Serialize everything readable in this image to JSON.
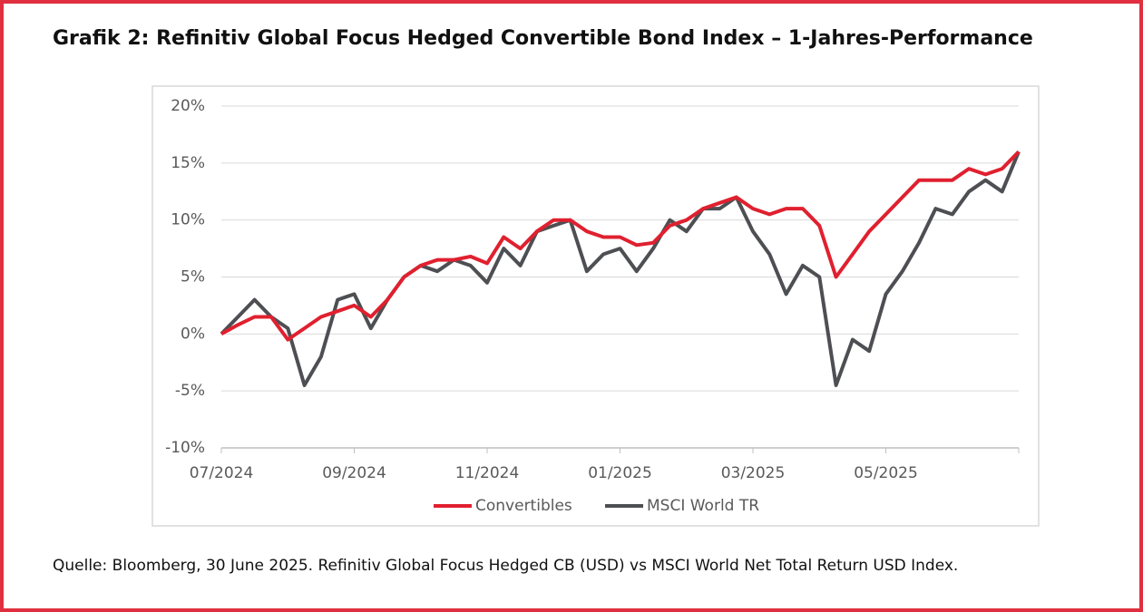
{
  "title": "Grafik 2: Refinitiv Global Focus Hedged Convertible Bond Index – 1-Jahres-Performance",
  "source": "Quelle: Bloomberg, 30 June 2025. Refinitiv Global Focus Hedged CB (USD) vs MSCI World Net Total Return USD Index.",
  "chart_data": {
    "type": "line",
    "categories": [
      "07/2024",
      null,
      null,
      null,
      null,
      null,
      null,
      null,
      "09/2024",
      null,
      null,
      null,
      null,
      null,
      null,
      null,
      "11/2024",
      null,
      null,
      null,
      null,
      null,
      null,
      null,
      "01/2025",
      null,
      null,
      null,
      null,
      null,
      null,
      null,
      "03/2025",
      null,
      null,
      null,
      null,
      null,
      null,
      null,
      "05/2025",
      null,
      null,
      null,
      null,
      null,
      null,
      null,
      null
    ],
    "series": [
      {
        "name": "Convertibles",
        "color": "#e0202f",
        "values": [
          0,
          0.8,
          1.5,
          1.5,
          -0.5,
          0.5,
          1.5,
          2.0,
          2.5,
          1.5,
          3.0,
          5.0,
          6.0,
          6.5,
          6.5,
          6.8,
          6.2,
          8.5,
          7.5,
          9.0,
          10.0,
          10.0,
          9.0,
          8.5,
          8.5,
          7.8,
          8.0,
          9.5,
          10.0,
          11.0,
          11.5,
          12.0,
          11.0,
          10.5,
          11.0,
          11.0,
          9.5,
          5.0,
          7.0,
          9.0,
          10.5,
          12.0,
          13.5,
          13.5,
          13.5,
          14.5,
          14.0,
          14.5,
          16.0
        ]
      },
      {
        "name": "MSCI World TR",
        "color": "#4d4f53",
        "values": [
          0,
          1.5,
          3.0,
          1.5,
          0.5,
          -4.5,
          -2.0,
          3.0,
          3.5,
          0.5,
          3.0,
          5.0,
          6.0,
          5.5,
          6.5,
          6.0,
          4.5,
          7.5,
          6.0,
          9.0,
          9.5,
          10.0,
          5.5,
          7.0,
          7.5,
          5.5,
          7.5,
          10.0,
          9.0,
          11.0,
          11.0,
          12.0,
          9.0,
          7.0,
          3.5,
          6.0,
          5.0,
          -4.5,
          -0.5,
          -1.5,
          3.5,
          5.5,
          8.0,
          11.0,
          10.5,
          12.5,
          13.5,
          12.5,
          16.0
        ]
      }
    ],
    "ylim": [
      -10,
      20
    ],
    "yticks": [
      {
        "value": -10,
        "label": "-10%"
      },
      {
        "value": -5,
        "label": "-5%"
      },
      {
        "value": 0,
        "label": "0%"
      },
      {
        "value": 5,
        "label": "5%"
      },
      {
        "value": 10,
        "label": "10%"
      },
      {
        "value": 15,
        "label": "15%"
      },
      {
        "value": 20,
        "label": "20%"
      }
    ],
    "grid": true
  }
}
